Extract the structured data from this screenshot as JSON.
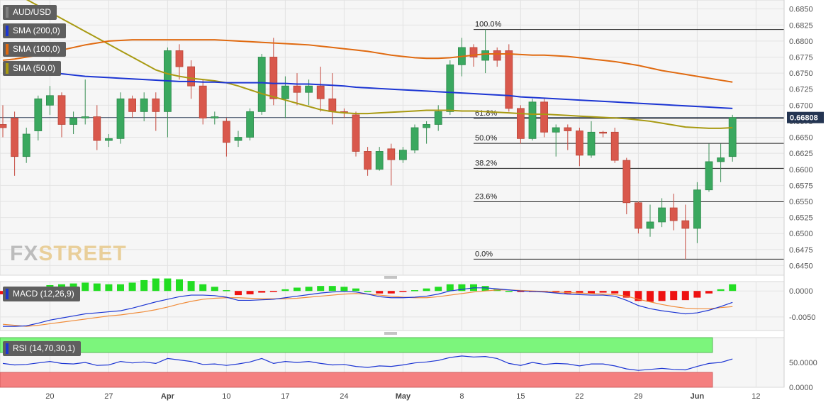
{
  "chart_data": {
    "type": "candlestick",
    "symbol": "AUD/USD",
    "x_ticks": [
      "20",
      "27",
      "Apr",
      "10",
      "17",
      "24",
      "May",
      "8",
      "15",
      "22",
      "29",
      "Jun",
      "12"
    ],
    "y_ticks": [
      "0.6850",
      "0.6825",
      "0.6800",
      "0.6775",
      "0.6750",
      "0.6725",
      "0.6700",
      "0.6675",
      "0.6650",
      "0.6625",
      "0.6600",
      "0.6575",
      "0.6550",
      "0.6525",
      "0.6500",
      "0.6475",
      "0.6450"
    ],
    "ylim": [
      0.6435,
      0.6864
    ],
    "last_price": "0.66808",
    "candles": [
      {
        "o": 0.667,
        "h": 0.67,
        "l": 0.665,
        "c": 0.6665
      },
      {
        "o": 0.668,
        "h": 0.669,
        "l": 0.659,
        "c": 0.662
      },
      {
        "o": 0.662,
        "h": 0.6665,
        "l": 0.661,
        "c": 0.6655
      },
      {
        "o": 0.666,
        "h": 0.6715,
        "l": 0.6645,
        "c": 0.671
      },
      {
        "o": 0.67,
        "h": 0.673,
        "l": 0.6685,
        "c": 0.6715
      },
      {
        "o": 0.6715,
        "h": 0.672,
        "l": 0.665,
        "c": 0.667
      },
      {
        "o": 0.667,
        "h": 0.669,
        "l": 0.6655,
        "c": 0.668
      },
      {
        "o": 0.668,
        "h": 0.674,
        "l": 0.667,
        "c": 0.6682
      },
      {
        "o": 0.6682,
        "h": 0.67,
        "l": 0.663,
        "c": 0.6645
      },
      {
        "o": 0.6645,
        "h": 0.6655,
        "l": 0.6635,
        "c": 0.6648
      },
      {
        "o": 0.6648,
        "h": 0.672,
        "l": 0.664,
        "c": 0.671
      },
      {
        "o": 0.671,
        "h": 0.6715,
        "l": 0.668,
        "c": 0.669
      },
      {
        "o": 0.669,
        "h": 0.672,
        "l": 0.6675,
        "c": 0.671
      },
      {
        "o": 0.671,
        "h": 0.672,
        "l": 0.666,
        "c": 0.669
      },
      {
        "o": 0.669,
        "h": 0.679,
        "l": 0.665,
        "c": 0.6785
      },
      {
        "o": 0.6785,
        "h": 0.6795,
        "l": 0.674,
        "c": 0.676
      },
      {
        "o": 0.676,
        "h": 0.677,
        "l": 0.671,
        "c": 0.673
      },
      {
        "o": 0.673,
        "h": 0.674,
        "l": 0.667,
        "c": 0.668
      },
      {
        "o": 0.668,
        "h": 0.669,
        "l": 0.667,
        "c": 0.6682
      },
      {
        "o": 0.6675,
        "h": 0.668,
        "l": 0.662,
        "c": 0.6642
      },
      {
        "o": 0.6645,
        "h": 0.666,
        "l": 0.6635,
        "c": 0.665
      },
      {
        "o": 0.665,
        "h": 0.6695,
        "l": 0.6645,
        "c": 0.669
      },
      {
        "o": 0.669,
        "h": 0.678,
        "l": 0.6685,
        "c": 0.6775
      },
      {
        "o": 0.6775,
        "h": 0.6805,
        "l": 0.67,
        "c": 0.671
      },
      {
        "o": 0.671,
        "h": 0.6745,
        "l": 0.668,
        "c": 0.673
      },
      {
        "o": 0.673,
        "h": 0.675,
        "l": 0.67,
        "c": 0.672
      },
      {
        "o": 0.672,
        "h": 0.674,
        "l": 0.67,
        "c": 0.673
      },
      {
        "o": 0.673,
        "h": 0.676,
        "l": 0.669,
        "c": 0.671
      },
      {
        "o": 0.671,
        "h": 0.675,
        "l": 0.667,
        "c": 0.669
      },
      {
        "o": 0.669,
        "h": 0.6695,
        "l": 0.668,
        "c": 0.6688
      },
      {
        "o": 0.6685,
        "h": 0.669,
        "l": 0.662,
        "c": 0.6628
      },
      {
        "o": 0.6628,
        "h": 0.6635,
        "l": 0.659,
        "c": 0.66
      },
      {
        "o": 0.66,
        "h": 0.6635,
        "l": 0.6598,
        "c": 0.6628
      },
      {
        "o": 0.6632,
        "h": 0.664,
        "l": 0.6575,
        "c": 0.6615
      },
      {
        "o": 0.6615,
        "h": 0.6635,
        "l": 0.661,
        "c": 0.663
      },
      {
        "o": 0.663,
        "h": 0.667,
        "l": 0.6625,
        "c": 0.6665
      },
      {
        "o": 0.6665,
        "h": 0.6675,
        "l": 0.664,
        "c": 0.667
      },
      {
        "o": 0.667,
        "h": 0.67,
        "l": 0.666,
        "c": 0.669
      },
      {
        "o": 0.669,
        "h": 0.677,
        "l": 0.6685,
        "c": 0.6763
      },
      {
        "o": 0.6763,
        "h": 0.6805,
        "l": 0.6745,
        "c": 0.679
      },
      {
        "o": 0.679,
        "h": 0.6795,
        "l": 0.676,
        "c": 0.6775
      },
      {
        "o": 0.677,
        "h": 0.6818,
        "l": 0.675,
        "c": 0.6785
      },
      {
        "o": 0.6785,
        "h": 0.679,
        "l": 0.676,
        "c": 0.677
      },
      {
        "o": 0.6785,
        "h": 0.6795,
        "l": 0.669,
        "c": 0.6695
      },
      {
        "o": 0.6695,
        "h": 0.67,
        "l": 0.664,
        "c": 0.6648
      },
      {
        "o": 0.6648,
        "h": 0.671,
        "l": 0.6645,
        "c": 0.6705
      },
      {
        "o": 0.6705,
        "h": 0.671,
        "l": 0.665,
        "c": 0.6658
      },
      {
        "o": 0.6658,
        "h": 0.667,
        "l": 0.662,
        "c": 0.6665
      },
      {
        "o": 0.6665,
        "h": 0.667,
        "l": 0.663,
        "c": 0.666
      },
      {
        "o": 0.666,
        "h": 0.6665,
        "l": 0.6605,
        "c": 0.6622
      },
      {
        "o": 0.6622,
        "h": 0.6675,
        "l": 0.6618,
        "c": 0.6658
      },
      {
        "o": 0.6658,
        "h": 0.666,
        "l": 0.665,
        "c": 0.6657
      },
      {
        "o": 0.6658,
        "h": 0.6665,
        "l": 0.661,
        "c": 0.6614
      },
      {
        "o": 0.6614,
        "h": 0.6618,
        "l": 0.653,
        "c": 0.6548
      },
      {
        "o": 0.6548,
        "h": 0.655,
        "l": 0.65,
        "c": 0.6508
      },
      {
        "o": 0.6508,
        "h": 0.6545,
        "l": 0.6495,
        "c": 0.6518
      },
      {
        "o": 0.6518,
        "h": 0.6555,
        "l": 0.651,
        "c": 0.654
      },
      {
        "o": 0.654,
        "h": 0.6562,
        "l": 0.6505,
        "c": 0.652
      },
      {
        "o": 0.652,
        "h": 0.6545,
        "l": 0.646,
        "c": 0.6508
      },
      {
        "o": 0.6508,
        "h": 0.658,
        "l": 0.6485,
        "c": 0.6568
      },
      {
        "o": 0.6568,
        "h": 0.664,
        "l": 0.6565,
        "c": 0.6612
      },
      {
        "o": 0.6612,
        "h": 0.664,
        "l": 0.658,
        "c": 0.6618
      },
      {
        "o": 0.662,
        "h": 0.6685,
        "l": 0.6612,
        "c": 0.66808
      }
    ],
    "sma200": [
      0.6765,
      0.6762,
      0.6758,
      0.6755,
      0.6752,
      0.6749,
      0.6747,
      0.6745,
      0.6744,
      0.6743,
      0.6742,
      0.6741,
      0.674,
      0.6739,
      0.6738,
      0.6737,
      0.6737,
      0.6736,
      0.6736,
      0.6735,
      0.6735,
      0.6735,
      0.6735,
      0.6734,
      0.6734,
      0.6733,
      0.6733,
      0.6732,
      0.6731,
      0.673,
      0.6728,
      0.6727,
      0.6726,
      0.6725,
      0.6724,
      0.6723,
      0.6722,
      0.6721,
      0.672,
      0.6719,
      0.6718,
      0.6717,
      0.6716,
      0.6715,
      0.6713,
      0.6712,
      0.6711,
      0.671,
      0.6709,
      0.6708,
      0.6707,
      0.6706,
      0.6705,
      0.6704,
      0.6703,
      0.6702,
      0.6701,
      0.67,
      0.6699,
      0.6698,
      0.6697,
      0.6696,
      0.6695
    ],
    "sma100": [
      0.677,
      0.6772,
      0.6775,
      0.6778,
      0.6782,
      0.6786,
      0.679,
      0.6794,
      0.6797,
      0.68,
      0.6801,
      0.6802,
      0.6802,
      0.6802,
      0.6802,
      0.6802,
      0.6802,
      0.6802,
      0.6802,
      0.6801,
      0.68,
      0.6799,
      0.6798,
      0.6797,
      0.6796,
      0.6795,
      0.6794,
      0.6792,
      0.679,
      0.6788,
      0.6786,
      0.6784,
      0.6781,
      0.6778,
      0.6776,
      0.6774,
      0.6773,
      0.6773,
      0.6774,
      0.6776,
      0.6778,
      0.678,
      0.678,
      0.678,
      0.6779,
      0.6778,
      0.6778,
      0.6777,
      0.6776,
      0.6774,
      0.6772,
      0.677,
      0.6768,
      0.6765,
      0.6762,
      0.6758,
      0.6754,
      0.6751,
      0.6748,
      0.6745,
      0.6742,
      0.6739,
      0.6736
    ],
    "sma50": [
      0.6885,
      0.6875,
      0.6865,
      0.6855,
      0.6845,
      0.6835,
      0.6825,
      0.6815,
      0.6805,
      0.6795,
      0.6785,
      0.6775,
      0.6765,
      0.6755,
      0.6749,
      0.6745,
      0.6742,
      0.674,
      0.6738,
      0.6735,
      0.673,
      0.6724,
      0.6718,
      0.6713,
      0.6708,
      0.6703,
      0.6698,
      0.6693,
      0.669,
      0.6688,
      0.6687,
      0.6687,
      0.6688,
      0.6689,
      0.669,
      0.6691,
      0.6692,
      0.6692,
      0.6692,
      0.6691,
      0.6691,
      0.669,
      0.6689,
      0.6688,
      0.6687,
      0.6686,
      0.6686,
      0.6685,
      0.6684,
      0.6683,
      0.6682,
      0.6681,
      0.668,
      0.6679,
      0.6677,
      0.6675,
      0.6672,
      0.6669,
      0.6666,
      0.6665,
      0.6664,
      0.6664,
      0.6665
    ],
    "fibonacci": [
      {
        "label": "100.0%",
        "value": 0.6818
      },
      {
        "label": "61.8%",
        "value": 0.66795
      },
      {
        "label": "50.0%",
        "value": 0.66405
      },
      {
        "label": "38.2%",
        "value": 0.66015
      },
      {
        "label": "23.6%",
        "value": 0.65495
      },
      {
        "label": "0.0%",
        "value": 0.646
      }
    ],
    "macd": {
      "label": "MACD (12,26,9)",
      "y_ticks": [
        "0.0000",
        "-0.0050"
      ],
      "ylim": [
        -0.0076,
        0.0018
      ],
      "macd_line": [
        -0.0068,
        -0.0068,
        -0.0067,
        -0.0062,
        -0.0056,
        -0.0052,
        -0.0048,
        -0.0044,
        -0.0042,
        -0.004,
        -0.0038,
        -0.0033,
        -0.0027,
        -0.0021,
        -0.0016,
        -0.0011,
        -0.0008,
        -0.0008,
        -0.0009,
        -0.0012,
        -0.0018,
        -0.0018,
        -0.0017,
        -0.0016,
        -0.0013,
        -0.001,
        -0.0007,
        -0.0004,
        -0.0002,
        -0.0001,
        -0.0002,
        -0.0006,
        -0.0011,
        -0.0013,
        -0.0013,
        -0.0012,
        -0.001,
        -0.0006,
        0.0,
        0.0003,
        0.0006,
        0.0006,
        0.0004,
        0.0002,
        0.0,
        -0.0001,
        -0.0002,
        -0.0004,
        -0.0006,
        -0.0007,
        -0.0008,
        -0.0008,
        -0.001,
        -0.0018,
        -0.0028,
        -0.0034,
        -0.0038,
        -0.0041,
        -0.0044,
        -0.0042,
        -0.0037,
        -0.003,
        -0.0022
      ],
      "signal_line": [
        -0.0064,
        -0.0066,
        -0.0068,
        -0.0066,
        -0.0063,
        -0.006,
        -0.0057,
        -0.0054,
        -0.0051,
        -0.0048,
        -0.0046,
        -0.0043,
        -0.004,
        -0.0036,
        -0.0031,
        -0.0025,
        -0.002,
        -0.0016,
        -0.0014,
        -0.0013,
        -0.0013,
        -0.0014,
        -0.0015,
        -0.0015,
        -0.0015,
        -0.0014,
        -0.0012,
        -0.001,
        -0.0008,
        -0.0006,
        -0.0005,
        -0.0006,
        -0.0008,
        -0.001,
        -0.0012,
        -0.0013,
        -0.0013,
        -0.0011,
        -0.0008,
        -0.0005,
        -0.0002,
        0.0,
        0.0002,
        0.0002,
        0.0001,
        0.0,
        -0.0001,
        -0.0002,
        -0.0003,
        -0.0004,
        -0.0005,
        -0.0006,
        -0.0007,
        -0.001,
        -0.0016,
        -0.0021,
        -0.0026,
        -0.003,
        -0.0033,
        -0.0034,
        -0.0034,
        -0.0032,
        -0.003
      ]
    },
    "rsi": {
      "label": "RSI (14,70,30,1)",
      "y_ticks": [
        "50.0000",
        "0.0000"
      ],
      "ylim": [
        0,
        100
      ],
      "overbought": 70,
      "oversold": 30,
      "values": [
        48,
        45,
        46,
        49,
        52,
        48,
        47,
        50,
        44,
        45,
        52,
        49,
        51,
        48,
        58,
        55,
        52,
        46,
        47,
        44,
        47,
        51,
        58,
        48,
        52,
        50,
        52,
        48,
        45,
        46,
        42,
        40,
        43,
        42,
        45,
        49,
        51,
        54,
        60,
        63,
        61,
        62,
        58,
        48,
        44,
        50,
        46,
        48,
        47,
        43,
        47,
        47,
        43,
        37,
        34,
        36,
        38,
        36,
        35,
        42,
        48,
        50,
        57
      ]
    }
  }
}
